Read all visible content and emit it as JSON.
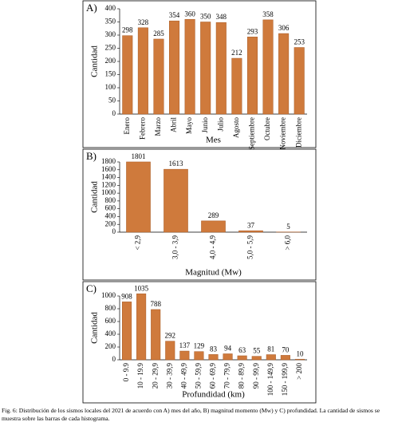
{
  "chart_data": [
    {
      "type": "bar",
      "label": "A)",
      "ylabel": "Cantidad",
      "xlabel": "Mes",
      "categories": [
        "Enero",
        "Febrero",
        "Marzo",
        "Abril",
        "Mayo",
        "Junio",
        "Julio",
        "Agosto",
        "Septiembre",
        "Octubre",
        "Noviembre",
        "Diciembre"
      ],
      "values": [
        298,
        328,
        285,
        354,
        360,
        350,
        348,
        212,
        293,
        358,
        306,
        253
      ],
      "color": "#cf7a3c",
      "ylim": [
        0,
        400
      ],
      "yticks": [
        0,
        50,
        100,
        150,
        200,
        250,
        300,
        350,
        400
      ]
    },
    {
      "type": "bar",
      "label": "B)",
      "ylabel": "Cantidad",
      "xlabel": "Magnitud (Mw)",
      "categories": [
        "< 2,9",
        "3,0 - 3,9",
        "4,0 - 4,9",
        "5,0 - 5,9",
        "> 6,0"
      ],
      "values": [
        1801,
        1613,
        289,
        37,
        5
      ],
      "color": "#cf7a3c",
      "ylim": [
        0,
        1800
      ],
      "yticks": [
        0,
        200,
        400,
        600,
        800,
        1000,
        1200,
        1400,
        1600,
        1800
      ]
    },
    {
      "type": "bar",
      "label": "C)",
      "ylabel": "Cantidad",
      "xlabel": "Profundidad (km)",
      "categories": [
        "0 - 9.9",
        "10 - 19.9",
        "20 - 29,9",
        "30 - 39,9",
        "40 - 49,9",
        "50 - 59,9",
        "60 - 69,9",
        "70 - 79,9",
        "80 - 89,9",
        "90 - 99,9",
        "100 - 149,9",
        "150 - 199,9",
        "> 200"
      ],
      "values": [
        908,
        1035,
        788,
        292,
        137,
        129,
        83,
        94,
        63,
        55,
        81,
        70,
        10
      ],
      "color": "#cf7a3c",
      "ylim": [
        0,
        1000
      ],
      "yticks": [
        0,
        200,
        400,
        600,
        800,
        1000
      ]
    }
  ],
  "caption": "Fig. 6: Distribución de los sismos locales del 2021 de acuerdo con A) mes del año, B) magnitud momento (Mw) y C) profundidad. La cantidad de sismos se muestra sobre las barras de cada histograma."
}
